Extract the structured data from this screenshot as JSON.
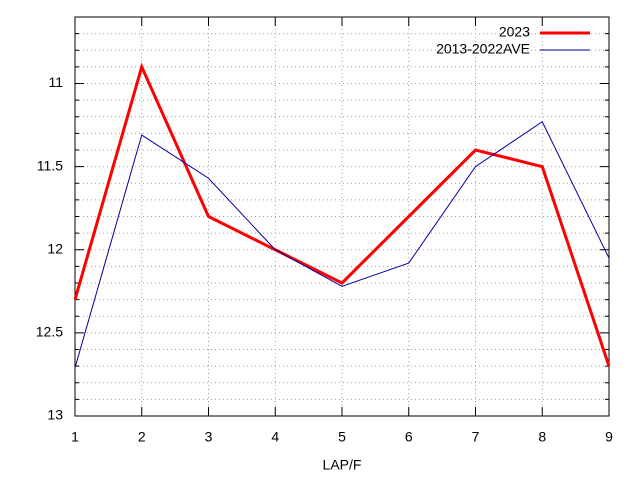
{
  "chart_data": {
    "type": "line",
    "x_label": "LAP/F",
    "x": [
      1,
      2,
      3,
      4,
      5,
      6,
      7,
      8,
      9
    ],
    "xlim": [
      1,
      9
    ],
    "xticks": [
      1,
      2,
      3,
      4,
      5,
      6,
      7,
      8,
      9
    ],
    "ylim": [
      13,
      10.6
    ],
    "yticks": [
      11,
      11.5,
      12,
      12.5,
      13
    ],
    "yminorticks": [
      10.7,
      10.8,
      10.9,
      11.1,
      11.2,
      11.3,
      11.4,
      11.6,
      11.7,
      11.8,
      11.9,
      12.1,
      12.2,
      12.3,
      12.4,
      12.6,
      12.7,
      12.8,
      12.9
    ],
    "grid": true,
    "legend": "top-right",
    "series": [
      {
        "name": "2023",
        "color": "#ff0000",
        "width": 3,
        "values": [
          12.3,
          10.9,
          11.8,
          12.0,
          12.2,
          11.8,
          11.4,
          11.5,
          12.7
        ]
      },
      {
        "name": "2013-2022AVE",
        "color": "#0000a0",
        "width": 1,
        "values": [
          12.71,
          11.31,
          11.57,
          12.0,
          12.22,
          12.08,
          11.5,
          11.23,
          12.05
        ]
      }
    ]
  }
}
